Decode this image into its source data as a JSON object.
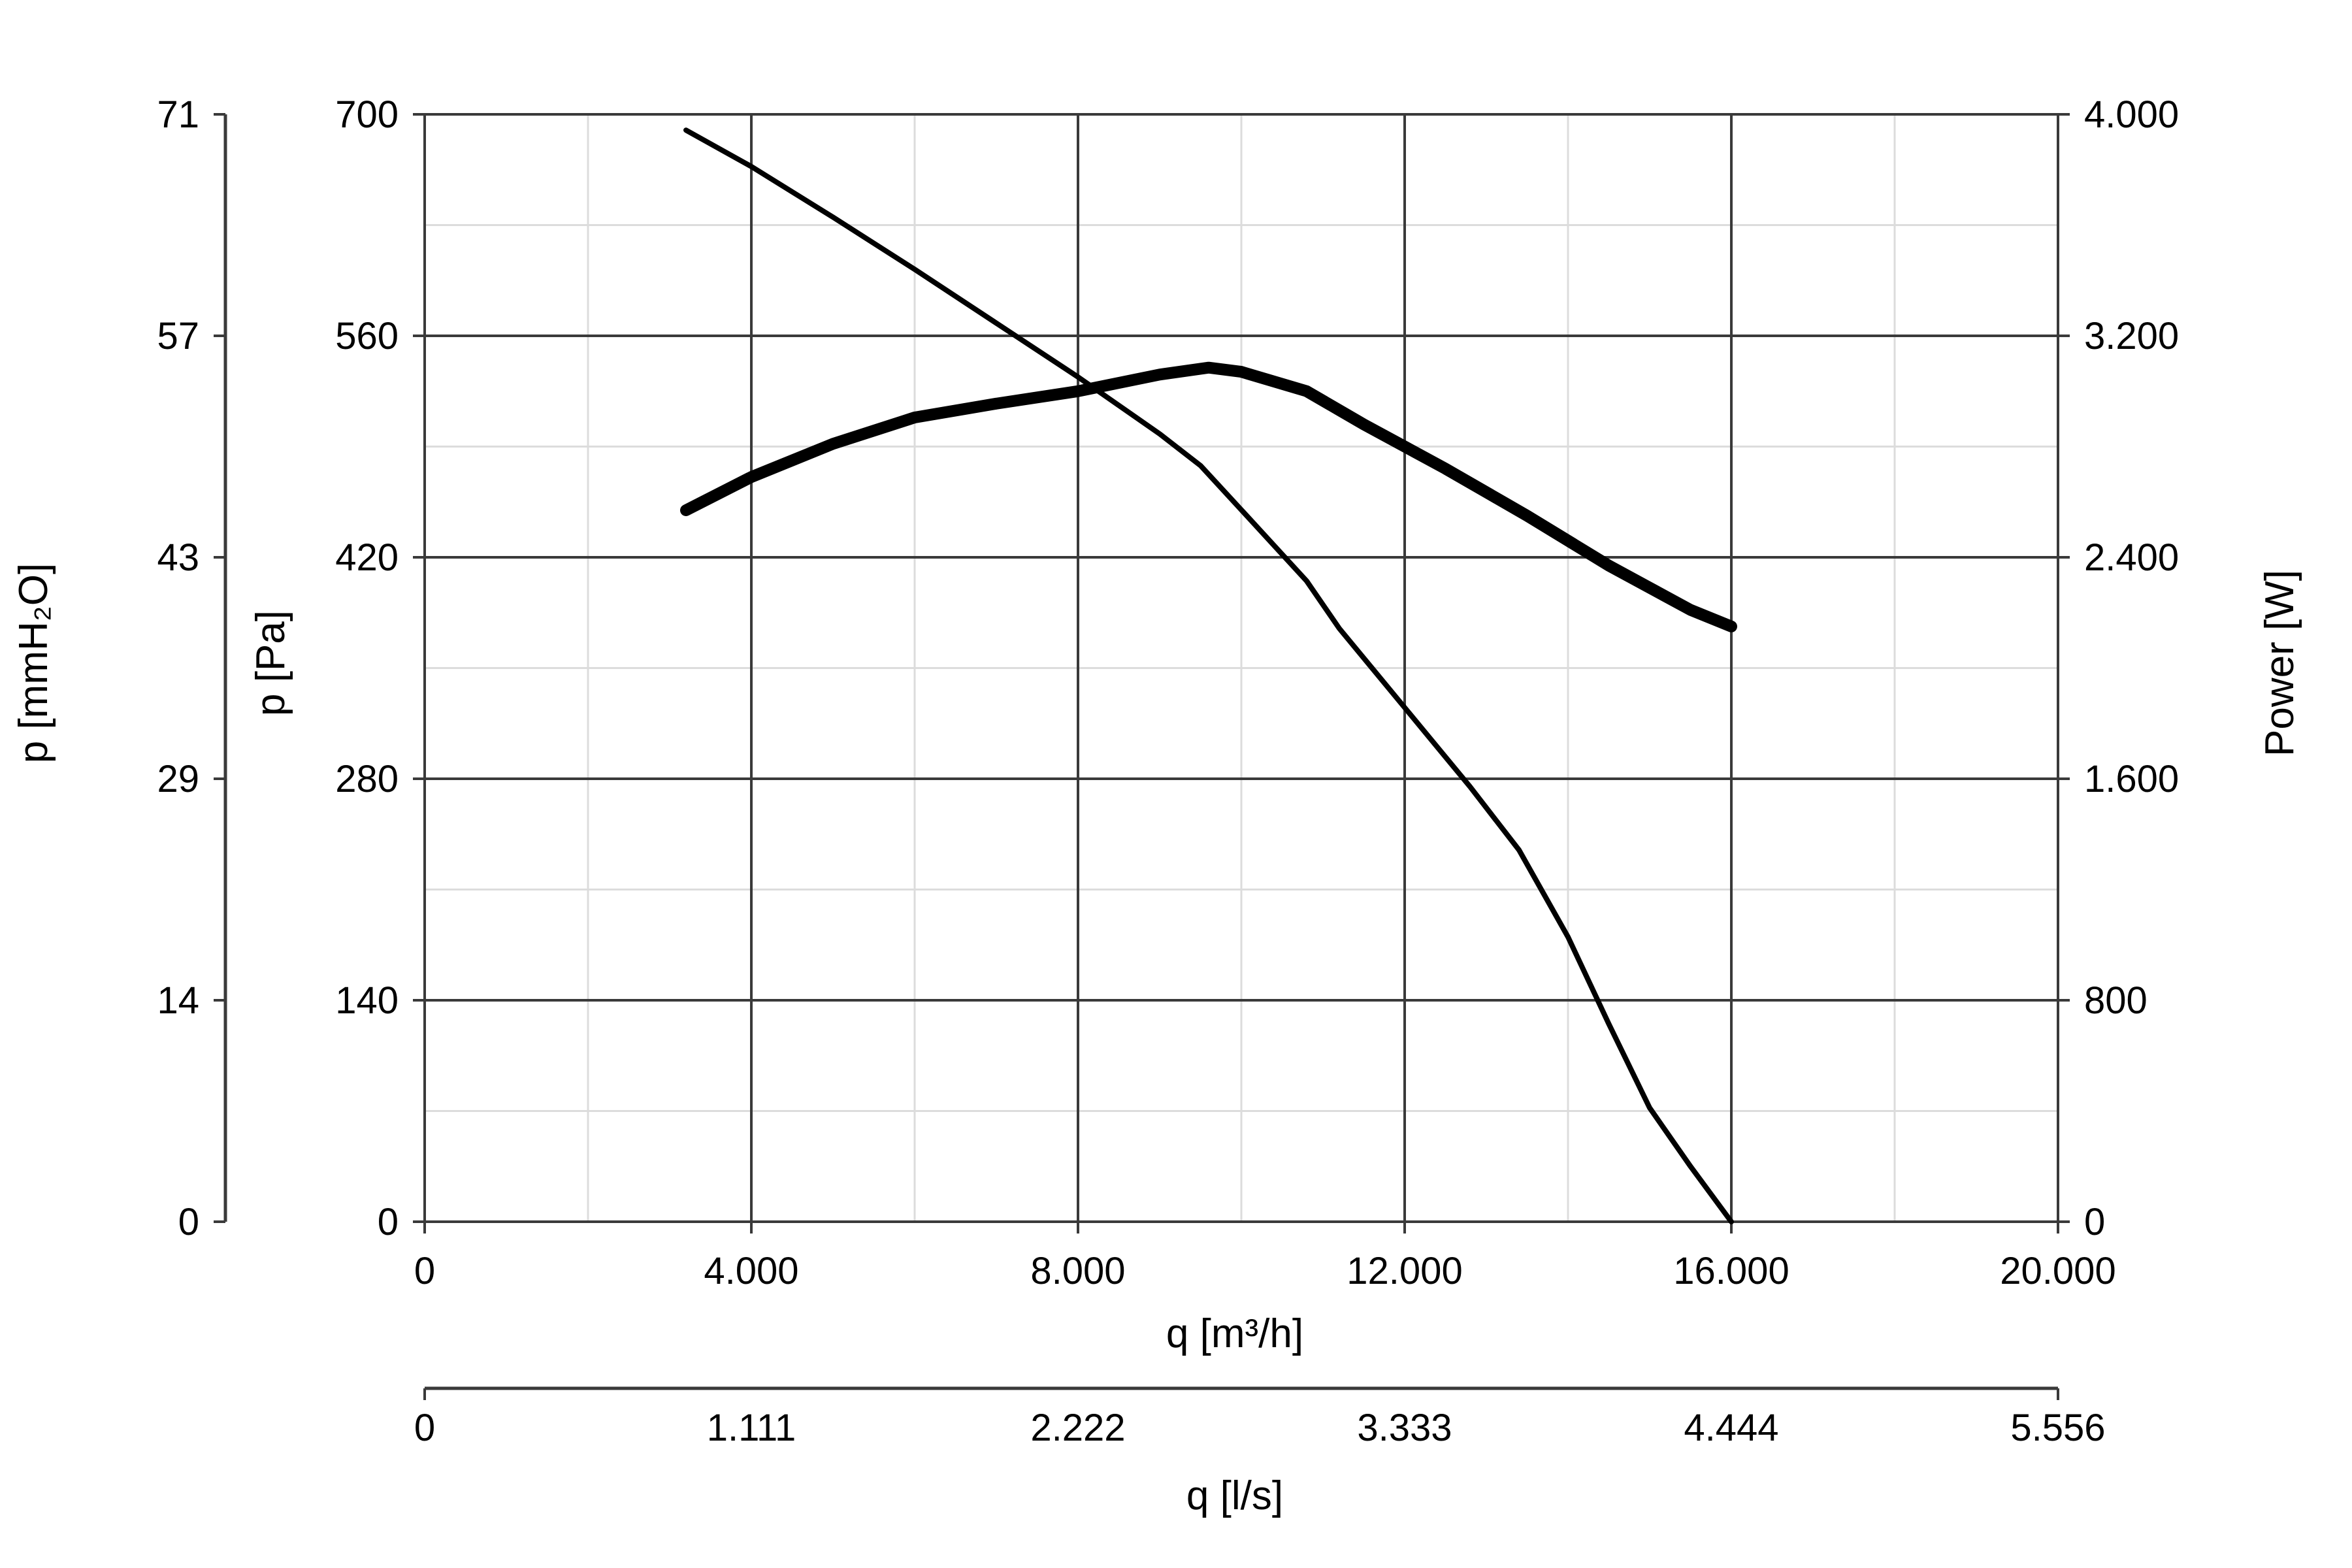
{
  "chart_data": {
    "type": "line",
    "x_axis": {
      "label": "q [m³/h]",
      "range": [
        0,
        20000
      ],
      "ticks": [
        0,
        4000,
        8000,
        12000,
        16000,
        20000
      ],
      "tick_labels": [
        "0",
        "4.000",
        "8.000",
        "12.000",
        "16.000",
        "20.000"
      ],
      "grid": true
    },
    "x_axis_secondary": {
      "label": "q [l/s]",
      "tick_labels": [
        "0",
        "1.111",
        "2.222",
        "3.333",
        "4.444",
        "5.556"
      ]
    },
    "y_axis_left": {
      "label": "p [Pa]",
      "range": [
        0,
        700
      ],
      "ticks": [
        0,
        140,
        280,
        420,
        560,
        700
      ],
      "tick_labels": [
        "0",
        "140",
        "280",
        "420",
        "560",
        "700"
      ],
      "grid": true
    },
    "y_axis_left_outer": {
      "label": "p [mmH₂O]",
      "tick_labels": [
        "0",
        "14",
        "29",
        "43",
        "57",
        "71"
      ]
    },
    "y_axis_right": {
      "label": "Power [W]",
      "range": [
        0,
        4000
      ],
      "ticks": [
        0,
        800,
        1600,
        2400,
        3200,
        4000
      ],
      "tick_labels": [
        "0",
        "800",
        "1.600",
        "2.400",
        "3.200",
        "4.000"
      ]
    },
    "series": [
      {
        "axis": "left",
        "stroke": "thin",
        "color": "#000000",
        "points": [
          [
            3200,
            690
          ],
          [
            4000,
            667
          ],
          [
            5000,
            635
          ],
          [
            6000,
            602
          ],
          [
            7000,
            568
          ],
          [
            8000,
            534
          ],
          [
            9000,
            498
          ],
          [
            9500,
            478
          ],
          [
            10000,
            450
          ],
          [
            10800,
            405
          ],
          [
            11200,
            375
          ],
          [
            12000,
            325
          ],
          [
            12800,
            275
          ],
          [
            13400,
            235
          ],
          [
            14000,
            180
          ],
          [
            14500,
            125
          ],
          [
            15000,
            72
          ],
          [
            15500,
            35
          ],
          [
            16000,
            0
          ]
        ]
      },
      {
        "axis": "right",
        "stroke": "thick",
        "color": "#000000",
        "points": [
          [
            3200,
            2570
          ],
          [
            4000,
            2690
          ],
          [
            5000,
            2810
          ],
          [
            6000,
            2905
          ],
          [
            7000,
            2955
          ],
          [
            8000,
            3000
          ],
          [
            9000,
            3060
          ],
          [
            9600,
            3085
          ],
          [
            10000,
            3070
          ],
          [
            10800,
            3000
          ],
          [
            11500,
            2880
          ],
          [
            12500,
            2720
          ],
          [
            13500,
            2550
          ],
          [
            14500,
            2370
          ],
          [
            15500,
            2210
          ],
          [
            16000,
            2150
          ]
        ]
      }
    ]
  }
}
